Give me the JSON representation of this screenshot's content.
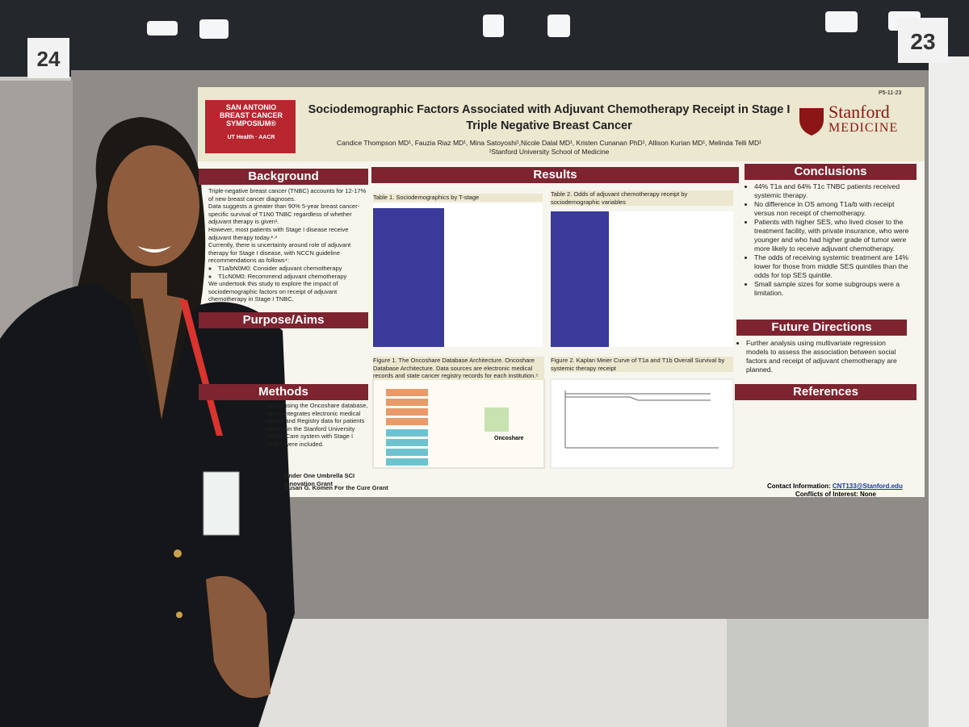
{
  "booth_numbers": [
    "24",
    "23"
  ],
  "poster": {
    "code": "P5-11-23",
    "logo_left": {
      "lines": [
        "SAN ANTONIO",
        "BREAST CANCER",
        "SYMPOSIUM®"
      ],
      "partners": [
        "UT Health",
        "AACR"
      ]
    },
    "logo_right": {
      "name": "Stanford",
      "sub": "MEDICINE"
    },
    "title": "Sociodemographic Factors Associated with Adjuvant Chemotherapy Receipt in Stage I Triple Negative Breast Cancer",
    "authors": "Candice Thompson MD¹, Fauzia Riaz MD¹, Mina Satoyoshi¹,Nicole Dalal MD¹, Kristen Cunanan PhD¹, Allison Kurian MD¹, Melinda Telli MD¹",
    "affiliation": "¹Stanford University School of Medicine",
    "background": {
      "heading": "Background",
      "bullets": [
        "Triple-negative breast cancer (TNBC) accounts for 12-17% of new breast cancer diagnoses.",
        "Data suggests a greater than 90% 5-year breast cancer-specific survival of T1N0 TNBC regardless of whether adjuvant therapy is given¹.",
        "However, most patients with Stage I disease receive adjuvant therapy today.²·³",
        "Currently, there is uncertainty around role of adjuvant therapy for Stage I disease, with NCCN guideline recommendations as follows⁴:",
        "T1a/bN0M0: Consider adjuvant chemotherapy",
        "T1cN0M0: Recommend adjuvant chemotherapy",
        "We undertook this study to explore the impact of sociodemographic factors on receipt of adjuvant chemotherapy in Stage I TNBC."
      ]
    },
    "aims": {
      "heading": "Purpose/Aims"
    },
    "methods": {
      "heading": "Methods",
      "text": "Study using the Oncoshare database, which integrates electronic medical record and Registry data for patients treated in the Stanford University Health Care system with Stage I TNBC were included."
    },
    "funding": [
      "Under One Umbrella SCI Innovation Grant",
      "Susan G. Komen For the Cure Grant"
    ],
    "results": {
      "heading": "Results",
      "table1": "Table 1. Sociodemographics by T-stage",
      "table2": "Table 2. Odds of adjuvant chemotherapy receipt by sociodemographic variables",
      "figure1": "Figure 1. The Oncoshare Database Architecture. Oncoshare Database Architecture. Data sources are electronic medical records and state cancer registry records for each institution.⁵",
      "figure2": "Figure 2. Kaplan Meier Curve of T1a and T1b Overall Survival by systemic therapy receipt",
      "figure1_label": "Oncoshare"
    },
    "conclusions": {
      "heading": "Conclusions",
      "bullets": [
        "44% T1a and 64% T1c TNBC patients received systemic therapy.",
        "No difference in OS among T1a/b with receipt versus non receipt of chemotherapy.",
        "Patients with higher SES, who lived closer to the treatment facility, with private insurance, who were younger and who had higher grade of tumor were more likely to receive adjuvant chemotherapy.",
        "The odds of receiving systemic treatment are 14% lower for those from middle SES quintiles than the odds for top SES quintile.",
        "Small sample sizes for some subgroups were a limitation."
      ]
    },
    "future": {
      "heading": "Future Directions",
      "bullets": [
        "Further analysis using multivariate regression models to assess the association between social factors and receipt of adjuvant chemotherapy are planned."
      ]
    },
    "references": {
      "heading": "References"
    },
    "contact": {
      "label": "Contact Information:",
      "email": "CNT133@Stanford.edu"
    },
    "conflicts": "Conflicts of Interest: None"
  }
}
